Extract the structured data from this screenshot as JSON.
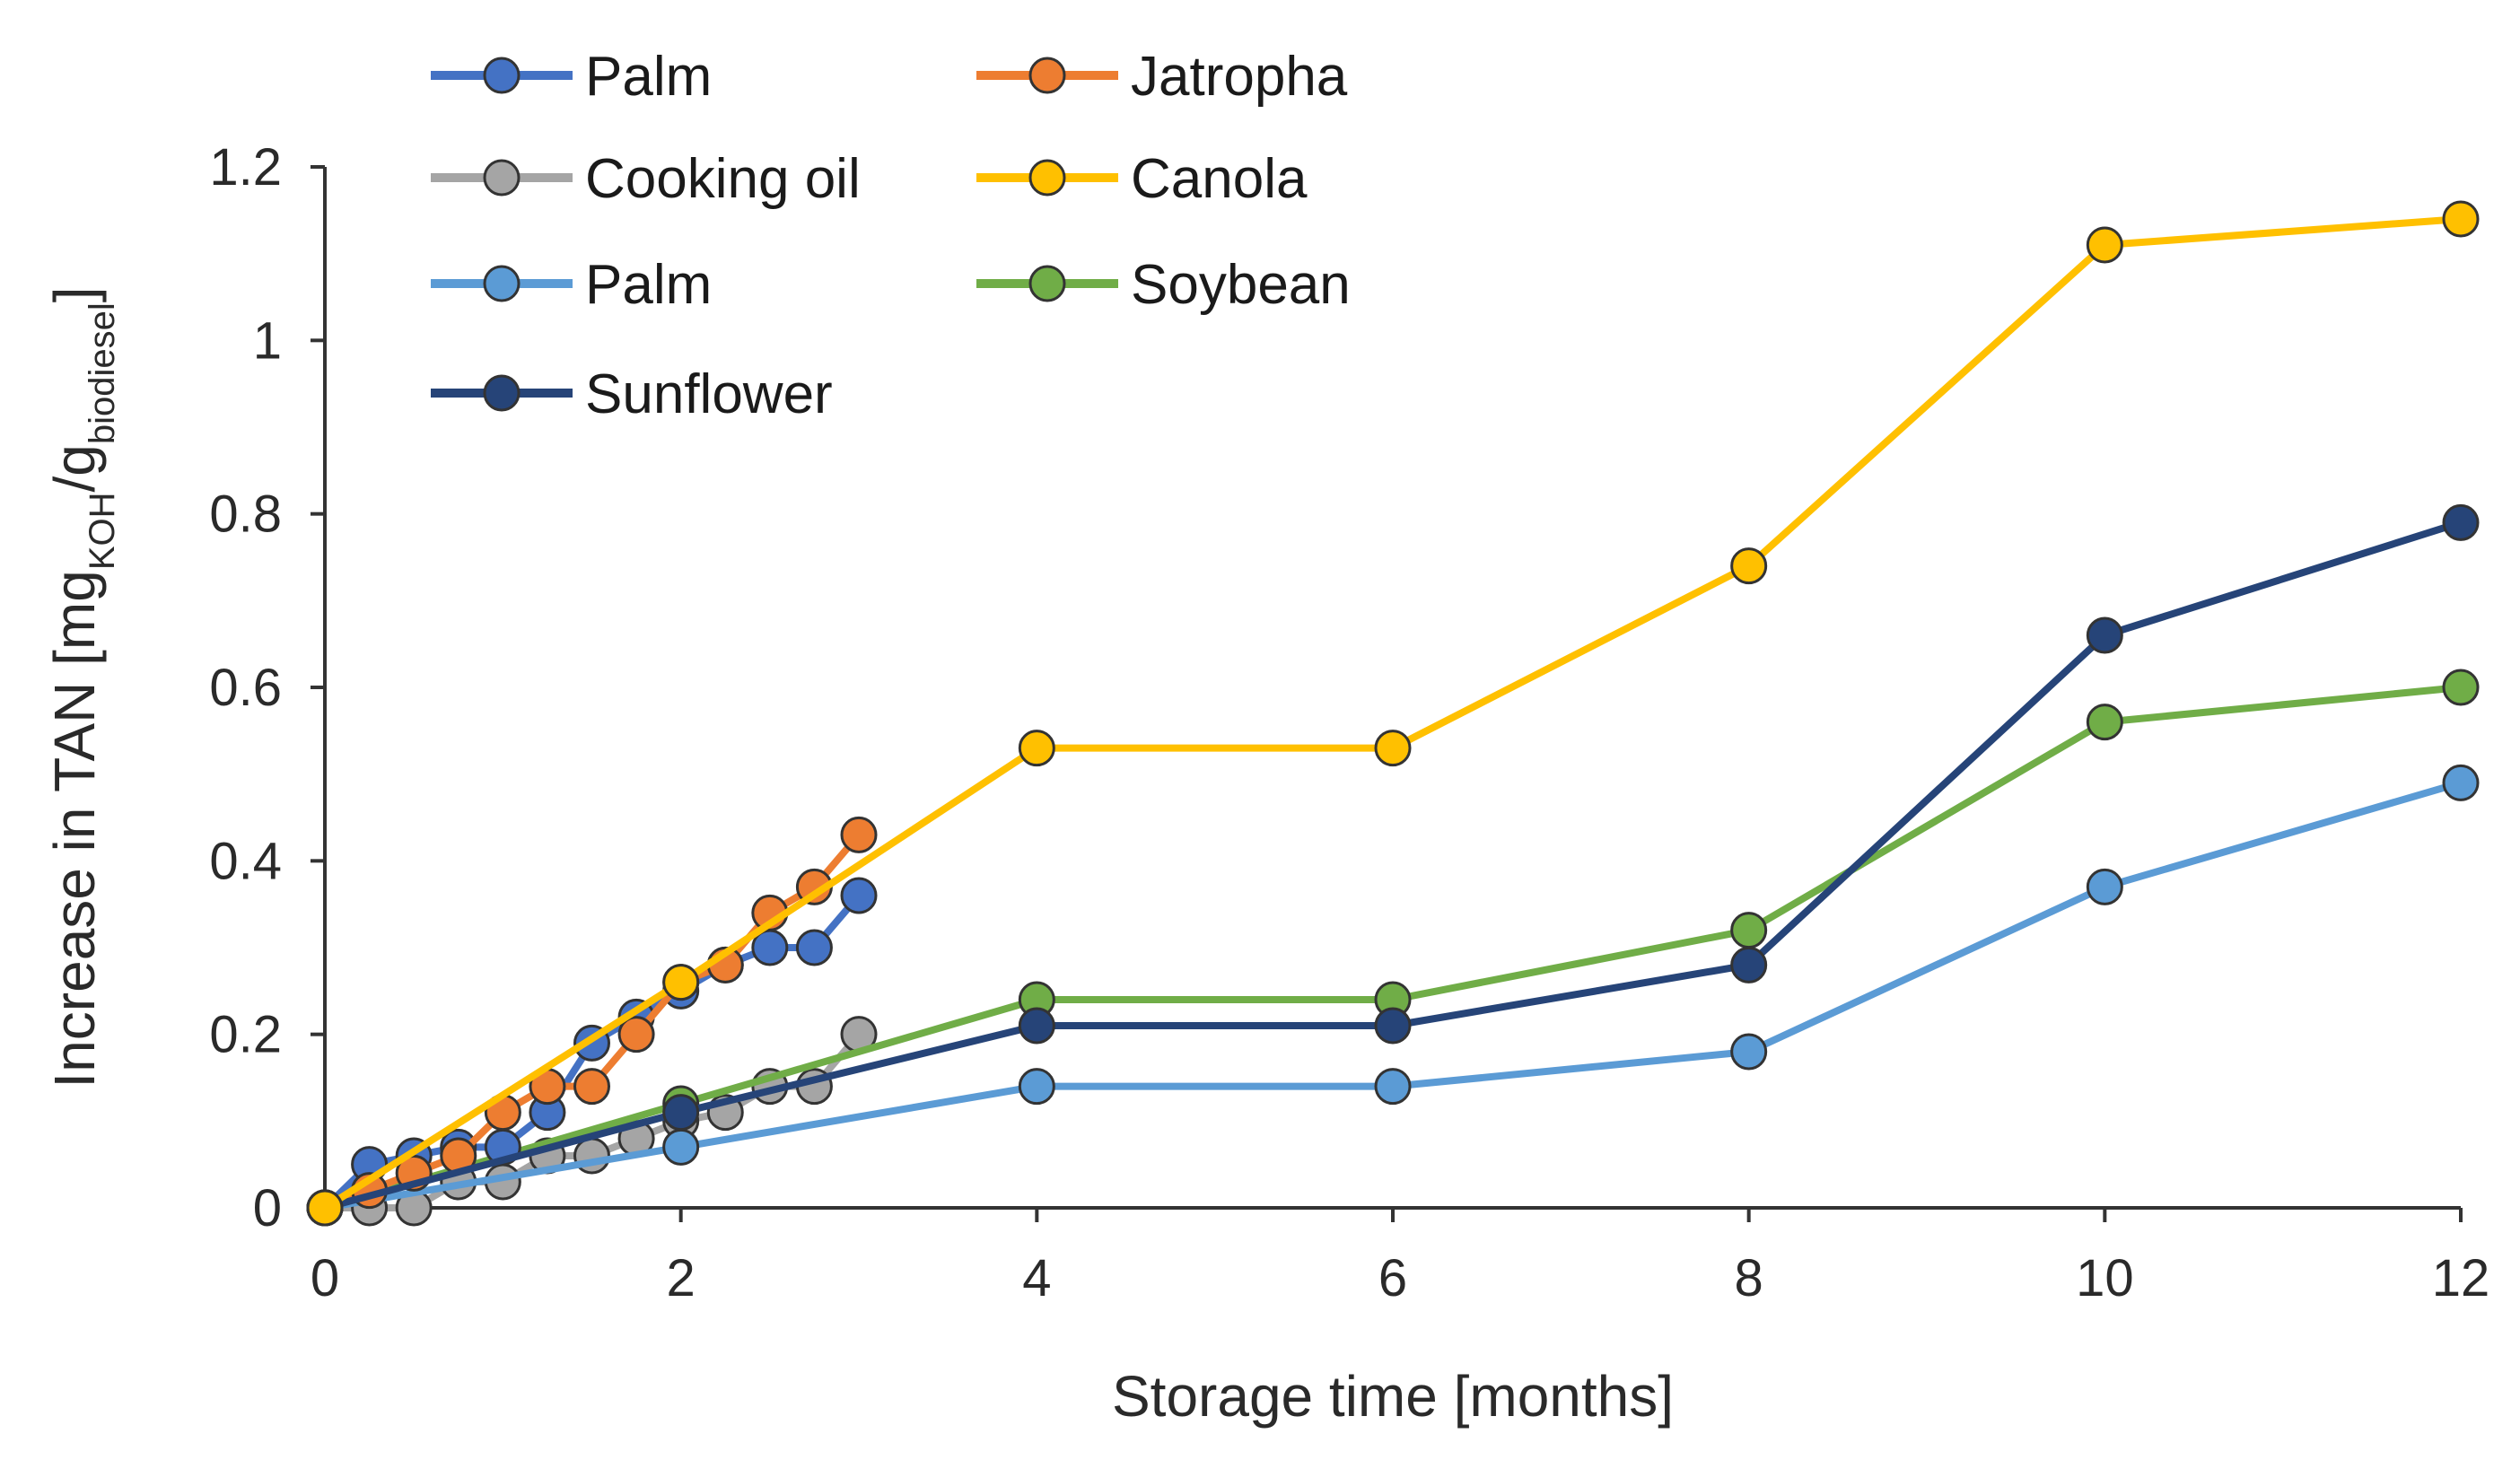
{
  "chart_data": {
    "type": "line",
    "title": "",
    "xlabel": "Storage time [months]",
    "ylabel": {
      "main": "Increase in TAN [mg",
      "sub1": "KOH",
      "mid": "/g",
      "sub2": "biodiesel",
      "end": "]"
    },
    "xlim": [
      0,
      12
    ],
    "ylim": [
      0,
      1.2
    ],
    "x_ticks": [
      0,
      2,
      4,
      6,
      8,
      10,
      12
    ],
    "x_tick_labels": [
      "0",
      "2",
      "4",
      "6",
      "8",
      "10",
      "12"
    ],
    "y_ticks": [
      0,
      0.2,
      0.4,
      0.6,
      0.8,
      1.0,
      1.2
    ],
    "y_tick_labels": [
      "0",
      "0.2",
      "0.4",
      "0.6",
      "0.8",
      "1",
      "1.2"
    ],
    "grid": false,
    "legend_position": "top-left",
    "series": [
      {
        "name": "Palm",
        "color": "#4472C4",
        "x": [
          0,
          0.25,
          0.5,
          0.75,
          1,
          1.25,
          1.5,
          1.75,
          2,
          2.25,
          2.5,
          2.75,
          3
        ],
        "values": [
          0,
          0.05,
          0.06,
          0.07,
          0.07,
          0.11,
          0.19,
          0.22,
          0.25,
          0.28,
          0.3,
          0.3,
          0.36
        ]
      },
      {
        "name": "Jatropha",
        "color": "#ED7D31",
        "x": [
          0,
          0.25,
          0.5,
          0.75,
          1,
          1.25,
          1.5,
          1.75,
          2,
          2.25,
          2.5,
          2.75,
          3
        ],
        "values": [
          0,
          0.02,
          0.04,
          0.06,
          0.11,
          0.14,
          0.14,
          0.2,
          0.26,
          0.28,
          0.34,
          0.37,
          0.43
        ]
      },
      {
        "name": "Cooking oil",
        "color": "#A5A5A5",
        "x": [
          0,
          0.25,
          0.5,
          0.75,
          1,
          1.25,
          1.5,
          1.75,
          2,
          2.25,
          2.5,
          2.75,
          3
        ],
        "values": [
          0,
          0,
          0,
          0.03,
          0.03,
          0.06,
          0.06,
          0.08,
          0.1,
          0.11,
          0.14,
          0.14,
          0.2
        ]
      },
      {
        "name": "Canola",
        "color": "#FFC000",
        "x": [
          0,
          2,
          4,
          6,
          8,
          10,
          12
        ],
        "values": [
          0,
          0.26,
          0.53,
          0.53,
          0.74,
          1.11,
          1.14
        ]
      },
      {
        "name": "Palm",
        "color": "#5B9BD5",
        "x": [
          0,
          2,
          4,
          6,
          8,
          10,
          12
        ],
        "values": [
          0,
          0.07,
          0.14,
          0.14,
          0.18,
          0.37,
          0.49
        ]
      },
      {
        "name": "Soybean",
        "color": "#70AD47",
        "x": [
          0,
          2,
          4,
          6,
          8,
          10,
          12
        ],
        "values": [
          0,
          0.12,
          0.24,
          0.24,
          0.32,
          0.56,
          0.6
        ]
      },
      {
        "name": "Sunflower",
        "color": "#264478",
        "x": [
          0,
          2,
          4,
          6,
          8,
          10,
          12
        ],
        "values": [
          0,
          0.11,
          0.21,
          0.21,
          0.28,
          0.66,
          0.79
        ]
      }
    ],
    "draw_order": [
      2,
      4,
      5,
      0,
      1,
      6,
      3
    ]
  }
}
